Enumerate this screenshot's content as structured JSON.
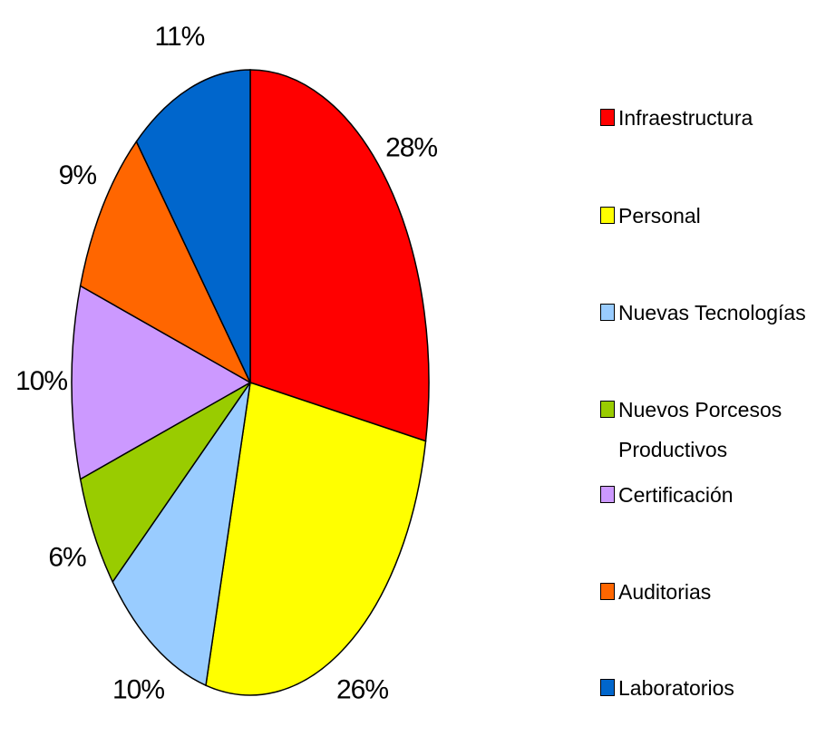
{
  "chart_data": {
    "type": "pie",
    "categories": [
      "Infraestructura",
      "Personal",
      "Nuevas Tecnologías",
      "Nuevos Porcesos Productivos",
      "Certificación",
      "Auditorias",
      "Laboratorios"
    ],
    "values": [
      28,
      26,
      10,
      6,
      10,
      9,
      11
    ],
    "value_labels": [
      "28%",
      "26%",
      "10%",
      "6%",
      "10%",
      "9%",
      "11%"
    ],
    "colors": [
      "#ff0000",
      "#ffff00",
      "#99ccff",
      "#99cc00",
      "#cc99ff",
      "#ff6600",
      "#0066cc"
    ],
    "legend": "right"
  }
}
